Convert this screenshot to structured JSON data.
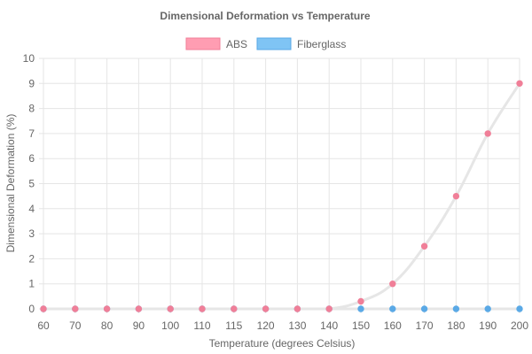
{
  "chart_data": {
    "type": "line",
    "title": "Dimensional Deformation vs Temperature",
    "xlabel": "Temperature (degrees Celsius)",
    "ylabel": "Dimensional Deformation (%)",
    "categories": [
      "60",
      "70",
      "80",
      "90",
      "100",
      "110",
      "115",
      "120",
      "130",
      "140",
      "150",
      "160",
      "170",
      "180",
      "190",
      "200"
    ],
    "ylim": [
      0,
      10
    ],
    "yticks": [
      "0",
      "1",
      "2",
      "3",
      "4",
      "5",
      "6",
      "7",
      "8",
      "9",
      "10"
    ],
    "grid": true,
    "legend_position": "top",
    "series": [
      {
        "name": "ABS",
        "values": [
          0,
          0,
          0,
          0,
          0,
          0,
          0,
          0,
          0,
          0,
          0.3,
          1,
          2.5,
          4.5,
          7,
          9
        ],
        "point_color": "#f07f98",
        "legend_fill": "#ff9db2",
        "legend_stroke": "#f07f98",
        "line_color": "#e6e6e6"
      },
      {
        "name": "Fiberglass",
        "values": [
          0,
          0,
          0,
          0,
          0,
          0,
          0,
          0,
          0,
          0,
          0,
          0,
          0,
          0,
          0,
          0
        ],
        "point_color": "#5aa9e6",
        "legend_fill": "#7fc4f4",
        "legend_stroke": "#5aa9e6",
        "line_color": "#e6e6e6"
      }
    ]
  }
}
